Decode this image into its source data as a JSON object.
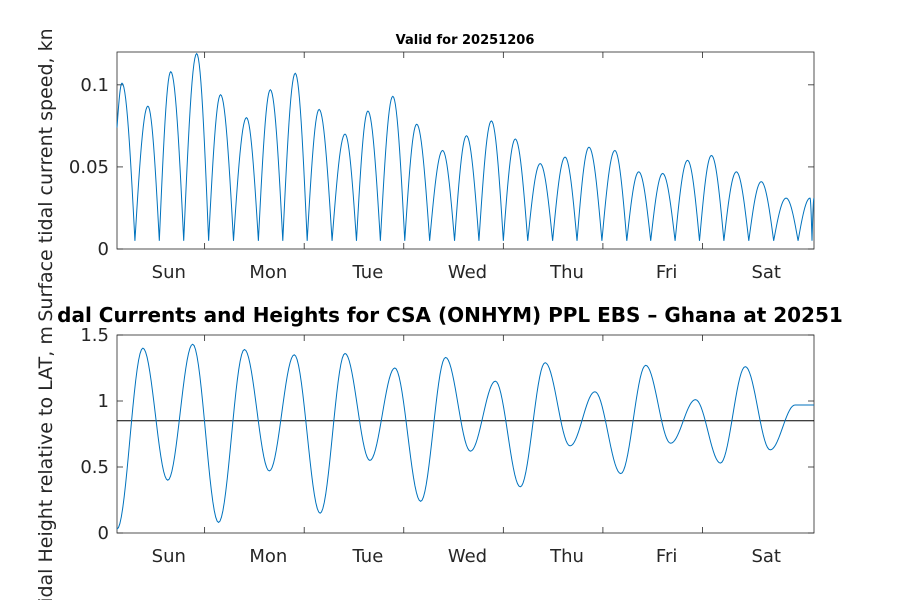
{
  "figure": {
    "suptitle": "dal Currents and Heights for CSA (ONHYM) PPL EBS  – Ghana at 20251",
    "line_color": "#0072bd"
  },
  "chart_data": [
    {
      "type": "line",
      "title": "Valid for 20251206",
      "ylabel": "Surface tidal current speed, kn",
      "xlabel": "",
      "x_ticks": [
        "Sun",
        "Mon",
        "Tue",
        "Wed",
        "Thu",
        "Fri",
        "Sat"
      ],
      "y_ticks": [
        "0",
        "0.05",
        "0.1"
      ],
      "ylim": [
        0,
        0.12
      ],
      "xlim_days": [
        0,
        7
      ],
      "grid": false,
      "series": [
        {
          "peaks_x_days": [
            0.05,
            0.31,
            0.54,
            0.8,
            1.04,
            1.3,
            1.54,
            1.79,
            2.03,
            2.29,
            2.52,
            2.77,
            3.01,
            3.27,
            3.51,
            3.76,
            4.0,
            4.25,
            4.5,
            4.74,
            5.0,
            5.24,
            5.48,
            5.73,
            5.97,
            6.22,
            6.47,
            6.72,
            6.96,
            7.0
          ],
          "peaks_y": [
            0.101,
            0.087,
            0.108,
            0.119,
            0.094,
            0.08,
            0.097,
            0.107,
            0.085,
            0.07,
            0.084,
            0.093,
            0.076,
            0.06,
            0.069,
            0.078,
            0.067,
            0.052,
            0.056,
            0.062,
            0.06,
            0.047,
            0.046,
            0.054,
            0.057,
            0.047,
            0.041,
            0.031,
            0.031,
            0.031
          ],
          "start_value": 0.074,
          "trough_value": 0.005
        }
      ]
    },
    {
      "type": "line",
      "title": "",
      "ylabel": "Tidal Height relative to LAT, m",
      "xlabel": "",
      "x_ticks": [
        "Sun",
        "Mon",
        "Tue",
        "Wed",
        "Thu",
        "Fri",
        "Sat"
      ],
      "y_ticks": [
        "0",
        "0.5",
        "1",
        "1.5"
      ],
      "ylim": [
        0,
        1.5
      ],
      "xlim_days": [
        0,
        7
      ],
      "grid": false,
      "reference_line": 0.85,
      "series": [
        {
          "extrema_x_days": [
            0.0,
            0.26,
            0.51,
            0.76,
            1.02,
            1.28,
            1.53,
            1.78,
            2.04,
            2.29,
            2.54,
            2.79,
            3.05,
            3.3,
            3.55,
            3.8,
            4.05,
            4.3,
            4.55,
            4.8,
            5.06,
            5.31,
            5.56,
            5.81,
            6.06,
            6.31,
            6.56,
            6.81,
            7.0
          ],
          "extrema_y": [
            0.03,
            1.4,
            0.4,
            1.43,
            0.08,
            1.39,
            0.47,
            1.35,
            0.15,
            1.36,
            0.55,
            1.25,
            0.24,
            1.33,
            0.62,
            1.15,
            0.35,
            1.29,
            0.66,
            1.07,
            0.45,
            1.27,
            0.68,
            1.01,
            0.53,
            1.26,
            0.63,
            0.97,
            0.97
          ]
        }
      ]
    }
  ]
}
